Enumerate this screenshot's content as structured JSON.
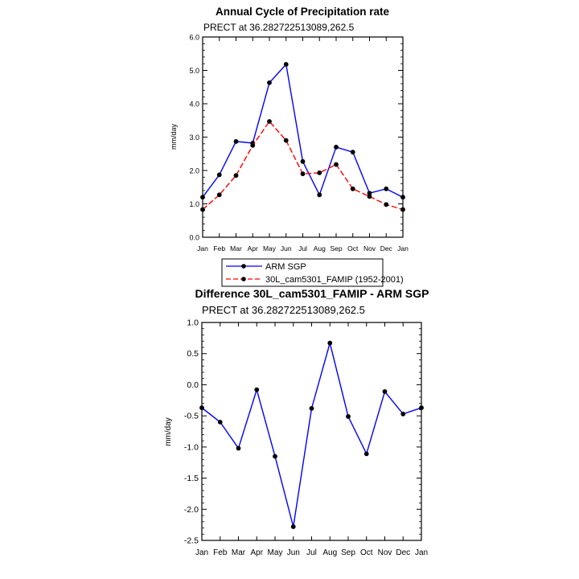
{
  "chart_data": [
    {
      "type": "line",
      "title": "Annual Cycle of Precipitation rate",
      "subtitle": "PRECT at 36.282722513089,262.5",
      "ylabel": "mm/day",
      "xlabel": "",
      "categories": [
        "Jan",
        "Feb",
        "Mar",
        "Apr",
        "May",
        "Jun",
        "Jul",
        "Aug",
        "Sep",
        "Oct",
        "Nov",
        "Dec",
        "Jan"
      ],
      "ylim": [
        0,
        6
      ],
      "yticks": [
        "0.0",
        "1.0",
        "2.0",
        "3.0",
        "4.0",
        "5.0",
        "6.0"
      ],
      "grid": false,
      "legend_position": "bottom-left",
      "series": [
        {
          "name": "ARM SGP",
          "color": "#0000ff",
          "dash": "solid",
          "values": [
            1.2,
            1.87,
            2.87,
            2.82,
            4.63,
            5.18,
            2.27,
            1.27,
            2.7,
            2.55,
            1.32,
            1.45,
            1.2
          ]
        },
        {
          "name": "30L_cam5301_FAMIP (1952-2001)",
          "color": "#ff0000",
          "dash": "dashed",
          "values": [
            0.83,
            1.27,
            1.85,
            2.75,
            3.47,
            2.9,
            1.9,
            1.93,
            2.18,
            1.45,
            1.22,
            0.98,
            0.83
          ]
        }
      ]
    },
    {
      "type": "line",
      "title": "Difference 30L_cam5301_FAMIP - ARM SGP",
      "subtitle": "PRECT at 36.282722513089,262.5",
      "ylabel": "mm/day",
      "xlabel": "",
      "categories": [
        "Jan",
        "Feb",
        "Mar",
        "Apr",
        "May",
        "Jun",
        "Jul",
        "Aug",
        "Sep",
        "Oct",
        "Nov",
        "Dec",
        "Jan"
      ],
      "ylim": [
        -2.5,
        1.0
      ],
      "yticks": [
        "-2.5",
        "-2.0",
        "-1.5",
        "-1.0",
        "-0.5",
        "0.0",
        "0.5",
        "1.0"
      ],
      "grid": false,
      "series": [
        {
          "color": "#0000ff",
          "dash": "solid",
          "values": [
            -0.37,
            -0.6,
            -1.02,
            -0.08,
            -1.15,
            -2.28,
            -0.38,
            0.67,
            -0.51,
            -1.11,
            -0.11,
            -0.47,
            -0.37
          ]
        }
      ]
    }
  ]
}
